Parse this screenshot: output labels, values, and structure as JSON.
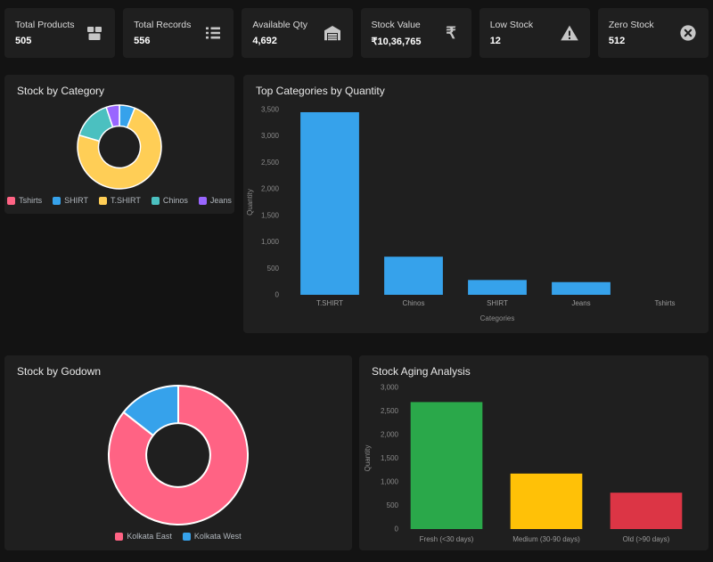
{
  "cards": [
    {
      "label": "Total Products",
      "value": "505",
      "icon": "package-icon"
    },
    {
      "label": "Total Records",
      "value": "556",
      "icon": "list-icon"
    },
    {
      "label": "Available Qty",
      "value": "4,692",
      "icon": "warehouse-icon"
    },
    {
      "label": "Stock Value",
      "value": "₹10,36,765",
      "icon": "rupee-icon"
    },
    {
      "label": "Low Stock",
      "value": "12",
      "icon": "warning-icon"
    },
    {
      "label": "Zero Stock",
      "value": "512",
      "icon": "cross-circle-icon"
    }
  ],
  "panels": {
    "category": {
      "title": "Stock by Category"
    },
    "top_categories": {
      "title": "Top Categories by Quantity"
    },
    "godown": {
      "title": "Stock by Godown"
    },
    "aging": {
      "title": "Stock Aging Analysis"
    }
  },
  "colors": {
    "page_bg": "#131313",
    "panel_bg": "#1f1f1f",
    "icon_gray": "#c6c6c6",
    "pink": "#ff6384",
    "blue": "#36a2eb",
    "yellow": "#ffce56",
    "teal": "#4bc0c0",
    "purple": "#9966ff",
    "green": "#2aa84a",
    "amber": "#ffc107",
    "red": "#dc3545"
  },
  "chart_data": [
    {
      "id": "category-donut",
      "type": "pie",
      "title": "Stock by Category",
      "labels": [
        "Tshirts",
        "SHIRT",
        "T.SHIRT",
        "Chinos",
        "Jeans"
      ],
      "values": [
        2,
        280,
        3450,
        720,
        240
      ],
      "colors": [
        "#ff6384",
        "#36a2eb",
        "#ffce56",
        "#4bc0c0",
        "#9966ff"
      ],
      "legend_position": "bottom",
      "donut_hole": 0.5
    },
    {
      "id": "top-categories-bar",
      "type": "bar",
      "title": "Top Categories by Quantity",
      "categories": [
        "T.SHIRT",
        "Chinos",
        "SHIRT",
        "Jeans",
        "Tshirts"
      ],
      "values": [
        3450,
        720,
        280,
        240,
        2
      ],
      "bar_color": "#36a2eb",
      "xlabel": "Categories",
      "ylabel": "Quantity",
      "ylim": [
        0,
        3500
      ],
      "ytick_step": 500,
      "grid": false,
      "legend_position": "none"
    },
    {
      "id": "godown-donut",
      "type": "pie",
      "title": "Stock by Godown",
      "labels": [
        "Kolkata East",
        "Kolkata West"
      ],
      "values": [
        4016,
        676
      ],
      "colors": [
        "#ff6384",
        "#36a2eb"
      ],
      "legend_position": "bottom",
      "donut_hole": 0.46
    },
    {
      "id": "aging-bar",
      "type": "bar",
      "title": "Stock Aging Analysis",
      "categories": [
        "Fresh (<30 days)",
        "Medium (30-90 days)",
        "Old (>90 days)"
      ],
      "values": [
        2690,
        1175,
        770
      ],
      "bar_colors": [
        "#2aa84a",
        "#ffc107",
        "#dc3545"
      ],
      "ylabel": "Quantity",
      "ylim": [
        0,
        3000
      ],
      "ytick_step": 500,
      "grid": false,
      "legend_position": "none"
    }
  ]
}
